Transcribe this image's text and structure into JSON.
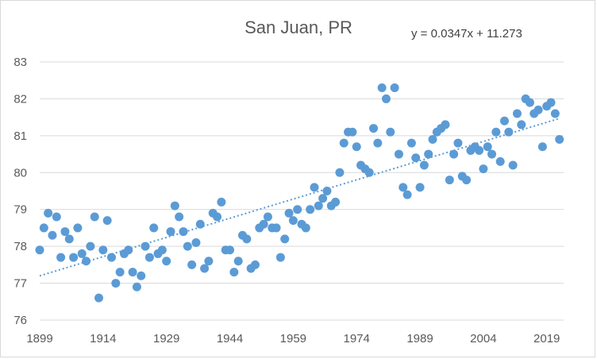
{
  "chart_data": {
    "type": "scatter",
    "title": "San Juan, PR",
    "trendline": {
      "type": "linear",
      "equation": "y = 0.0347x + 11.273",
      "style": "dotted"
    },
    "xlim": [
      1899,
      2023
    ],
    "ylim": [
      76,
      83
    ],
    "x_ticks": [
      "1899",
      "1914",
      "1929",
      "1944",
      "1959",
      "1974",
      "1989",
      "2004",
      "2019"
    ],
    "y_ticks": [
      "76",
      "77",
      "78",
      "79",
      "80",
      "81",
      "82",
      "83"
    ],
    "grid": "horizontal",
    "legend": "none",
    "colors": {
      "points": "#5b9bd5",
      "trendline": "#5b9bd5",
      "grid": "#d9d9d9"
    },
    "points": [
      [
        1899,
        77.9
      ],
      [
        1900,
        78.5
      ],
      [
        1901,
        78.9
      ],
      [
        1902,
        78.3
      ],
      [
        1903,
        78.8
      ],
      [
        1904,
        77.7
      ],
      [
        1905,
        78.4
      ],
      [
        1906,
        78.2
      ],
      [
        1907,
        77.7
      ],
      [
        1908,
        78.5
      ],
      [
        1909,
        77.8
      ],
      [
        1910,
        77.6
      ],
      [
        1911,
        78.0
      ],
      [
        1912,
        78.8
      ],
      [
        1913,
        76.6
      ],
      [
        1914,
        77.9
      ],
      [
        1915,
        78.7
      ],
      [
        1916,
        77.7
      ],
      [
        1917,
        77.0
      ],
      [
        1918,
        77.3
      ],
      [
        1919,
        77.8
      ],
      [
        1920,
        77.9
      ],
      [
        1921,
        77.3
      ],
      [
        1922,
        76.9
      ],
      [
        1923,
        77.2
      ],
      [
        1924,
        78.0
      ],
      [
        1925,
        77.7
      ],
      [
        1926,
        78.5
      ],
      [
        1927,
        77.8
      ],
      [
        1928,
        77.9
      ],
      [
        1929,
        77.6
      ],
      [
        1930,
        78.4
      ],
      [
        1931,
        79.1
      ],
      [
        1932,
        78.8
      ],
      [
        1933,
        78.4
      ],
      [
        1934,
        78.0
      ],
      [
        1935,
        77.5
      ],
      [
        1936,
        78.1
      ],
      [
        1937,
        78.6
      ],
      [
        1938,
        77.4
      ],
      [
        1939,
        77.6
      ],
      [
        1940,
        78.9
      ],
      [
        1941,
        78.8
      ],
      [
        1942,
        79.2
      ],
      [
        1943,
        77.9
      ],
      [
        1944,
        77.9
      ],
      [
        1945,
        77.3
      ],
      [
        1946,
        77.6
      ],
      [
        1947,
        78.3
      ],
      [
        1948,
        78.2
      ],
      [
        1949,
        77.4
      ],
      [
        1950,
        77.5
      ],
      [
        1951,
        78.5
      ],
      [
        1952,
        78.6
      ],
      [
        1953,
        78.8
      ],
      [
        1954,
        78.5
      ],
      [
        1955,
        78.5
      ],
      [
        1956,
        77.7
      ],
      [
        1957,
        78.2
      ],
      [
        1958,
        78.9
      ],
      [
        1959,
        78.7
      ],
      [
        1960,
        79.0
      ],
      [
        1961,
        78.6
      ],
      [
        1962,
        78.5
      ],
      [
        1963,
        79.0
      ],
      [
        1964,
        79.6
      ],
      [
        1965,
        79.1
      ],
      [
        1966,
        79.3
      ],
      [
        1967,
        79.5
      ],
      [
        1968,
        79.1
      ],
      [
        1969,
        79.2
      ],
      [
        1970,
        80.0
      ],
      [
        1971,
        80.8
      ],
      [
        1972,
        81.1
      ],
      [
        1973,
        81.1
      ],
      [
        1974,
        80.7
      ],
      [
        1975,
        80.2
      ],
      [
        1976,
        80.1
      ],
      [
        1977,
        80.0
      ],
      [
        1978,
        81.2
      ],
      [
        1979,
        80.8
      ],
      [
        1980,
        82.3
      ],
      [
        1981,
        82.0
      ],
      [
        1982,
        81.1
      ],
      [
        1983,
        82.3
      ],
      [
        1984,
        80.5
      ],
      [
        1985,
        79.6
      ],
      [
        1986,
        79.4
      ],
      [
        1987,
        80.8
      ],
      [
        1988,
        80.4
      ],
      [
        1989,
        79.6
      ],
      [
        1990,
        80.2
      ],
      [
        1991,
        80.5
      ],
      [
        1992,
        80.9
      ],
      [
        1993,
        81.1
      ],
      [
        1994,
        81.2
      ],
      [
        1995,
        81.3
      ],
      [
        1996,
        79.8
      ],
      [
        1997,
        80.5
      ],
      [
        1998,
        80.8
      ],
      [
        1999,
        79.9
      ],
      [
        2000,
        79.8
      ],
      [
        2001,
        80.6
      ],
      [
        2002,
        80.7
      ],
      [
        2003,
        80.6
      ],
      [
        2004,
        80.1
      ],
      [
        2005,
        80.7
      ],
      [
        2006,
        80.5
      ],
      [
        2007,
        81.1
      ],
      [
        2008,
        80.3
      ],
      [
        2009,
        81.4
      ],
      [
        2010,
        81.1
      ],
      [
        2011,
        80.2
      ],
      [
        2012,
        81.6
      ],
      [
        2013,
        81.3
      ],
      [
        2014,
        82.0
      ],
      [
        2015,
        81.9
      ],
      [
        2016,
        81.6
      ],
      [
        2017,
        81.7
      ],
      [
        2018,
        80.7
      ],
      [
        2019,
        81.8
      ],
      [
        2020,
        81.9
      ],
      [
        2021,
        81.6
      ],
      [
        2022,
        80.9
      ]
    ]
  }
}
